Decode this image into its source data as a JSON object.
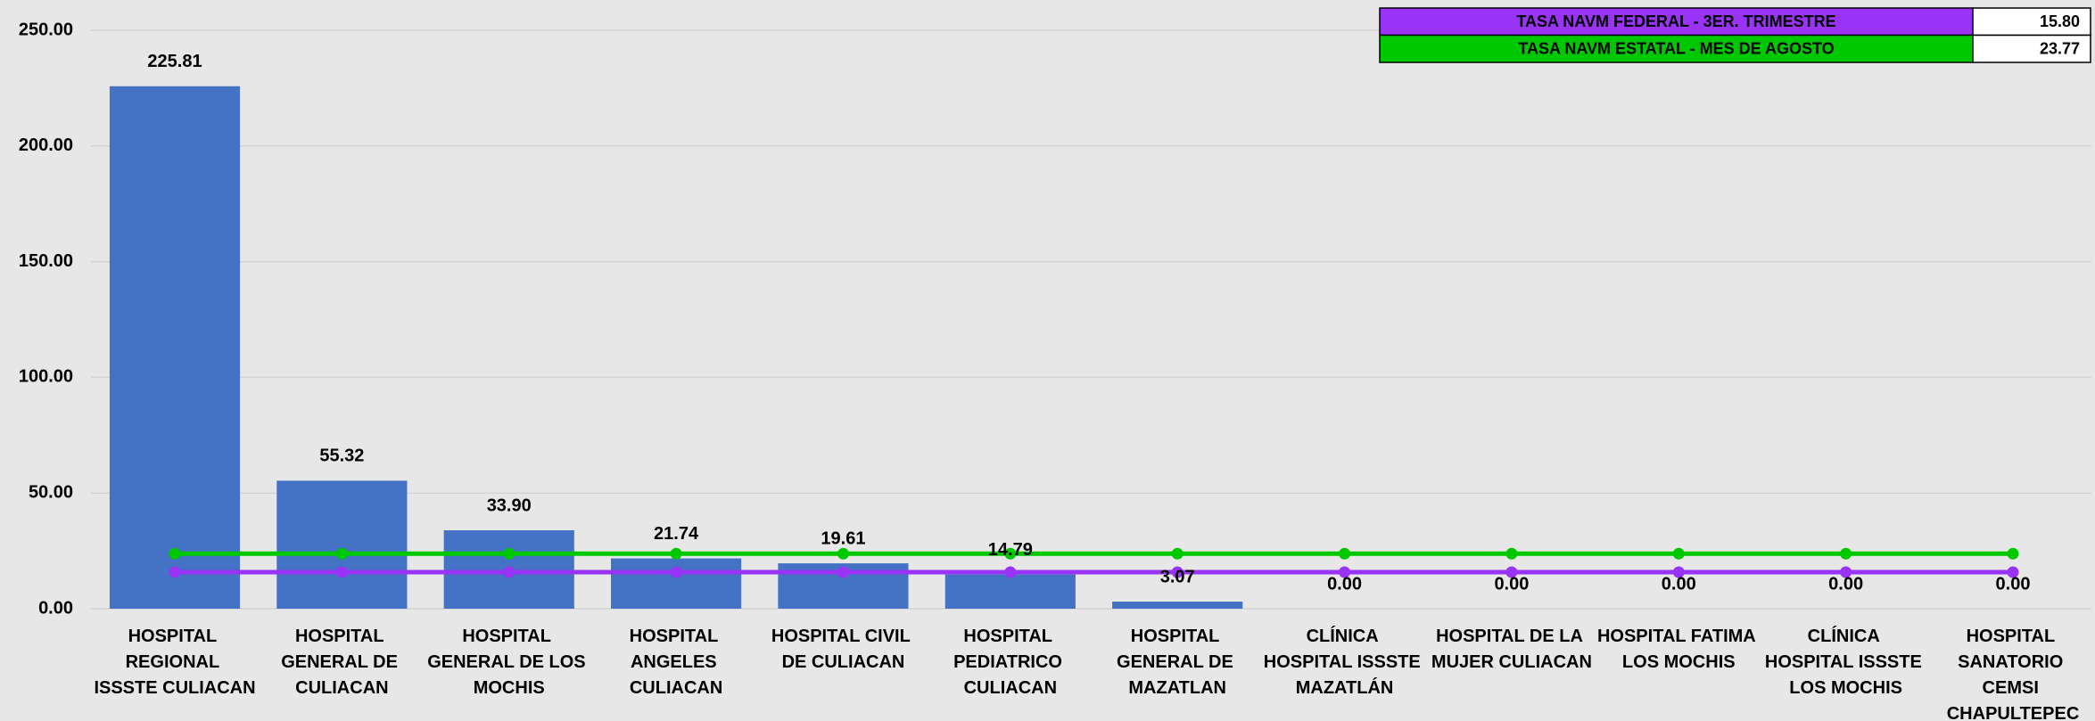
{
  "chart_data": {
    "type": "bar",
    "categories": [
      "HOSPITAL REGIONAL ISSSTE CULIACAN",
      "HOSPITAL GENERAL DE CULIACAN",
      "HOSPITAL GENERAL DE LOS MOCHIS",
      "HOSPITAL ANGELES CULIACAN",
      "HOSPITAL CIVIL DE CULIACAN",
      "HOSPITAL PEDIATRICO CULIACAN",
      "HOSPITAL GENERAL DE MAZATLAN",
      "CLÍNICA HOSPITAL ISSSTE MAZATLÁN",
      "HOSPITAL DE LA MUJER CULIACAN",
      "HOSPITAL FATIMA LOS MOCHIS",
      "CLÍNICA HOSPITAL ISSSTE LOS MOCHIS",
      "HOSPITAL SANATORIO CEMSI CHAPULTEPEC"
    ],
    "values": [
      225.81,
      55.32,
      33.9,
      21.74,
      19.61,
      14.79,
      3.07,
      0,
      0,
      0,
      0,
      0
    ],
    "value_labels": [
      "225.81",
      "55.32",
      "33.90",
      "21.74",
      "19.61",
      "14.79",
      "3.07",
      "0.00",
      "0.00",
      "0.00",
      "0.00",
      "0.00"
    ],
    "color": "#4472c4",
    "series": [
      {
        "name": "TASA NAVM FEDERAL - 3ER. TRIMESTRE",
        "color": "#9933f5",
        "values": [
          15.8,
          15.8,
          15.8,
          15.8,
          15.8,
          15.8,
          15.8,
          15.8,
          15.8,
          15.8,
          15.8,
          15.8
        ],
        "value_labels": [
          "15.80"
        ]
      },
      {
        "name": "TASA NAVM ESTATAL - MES DE AGOSTO",
        "color": "#00c800",
        "values": [
          23.77,
          23.77,
          23.77,
          23.77,
          23.77,
          23.77,
          23.77,
          23.77,
          23.77,
          23.77,
          23.77,
          23.77
        ],
        "value_labels": [
          "23.77"
        ]
      }
    ],
    "ylim": [
      0,
      250
    ],
    "yticks": [
      {
        "value": 0,
        "label": "0.00"
      },
      {
        "value": 50,
        "label": "50.00"
      },
      {
        "value": 100,
        "label": "100.00"
      },
      {
        "value": 150,
        "label": "150.00"
      },
      {
        "value": 200,
        "label": "200.00"
      },
      {
        "value": 250,
        "label": "250.00"
      }
    ],
    "grid": true
  }
}
